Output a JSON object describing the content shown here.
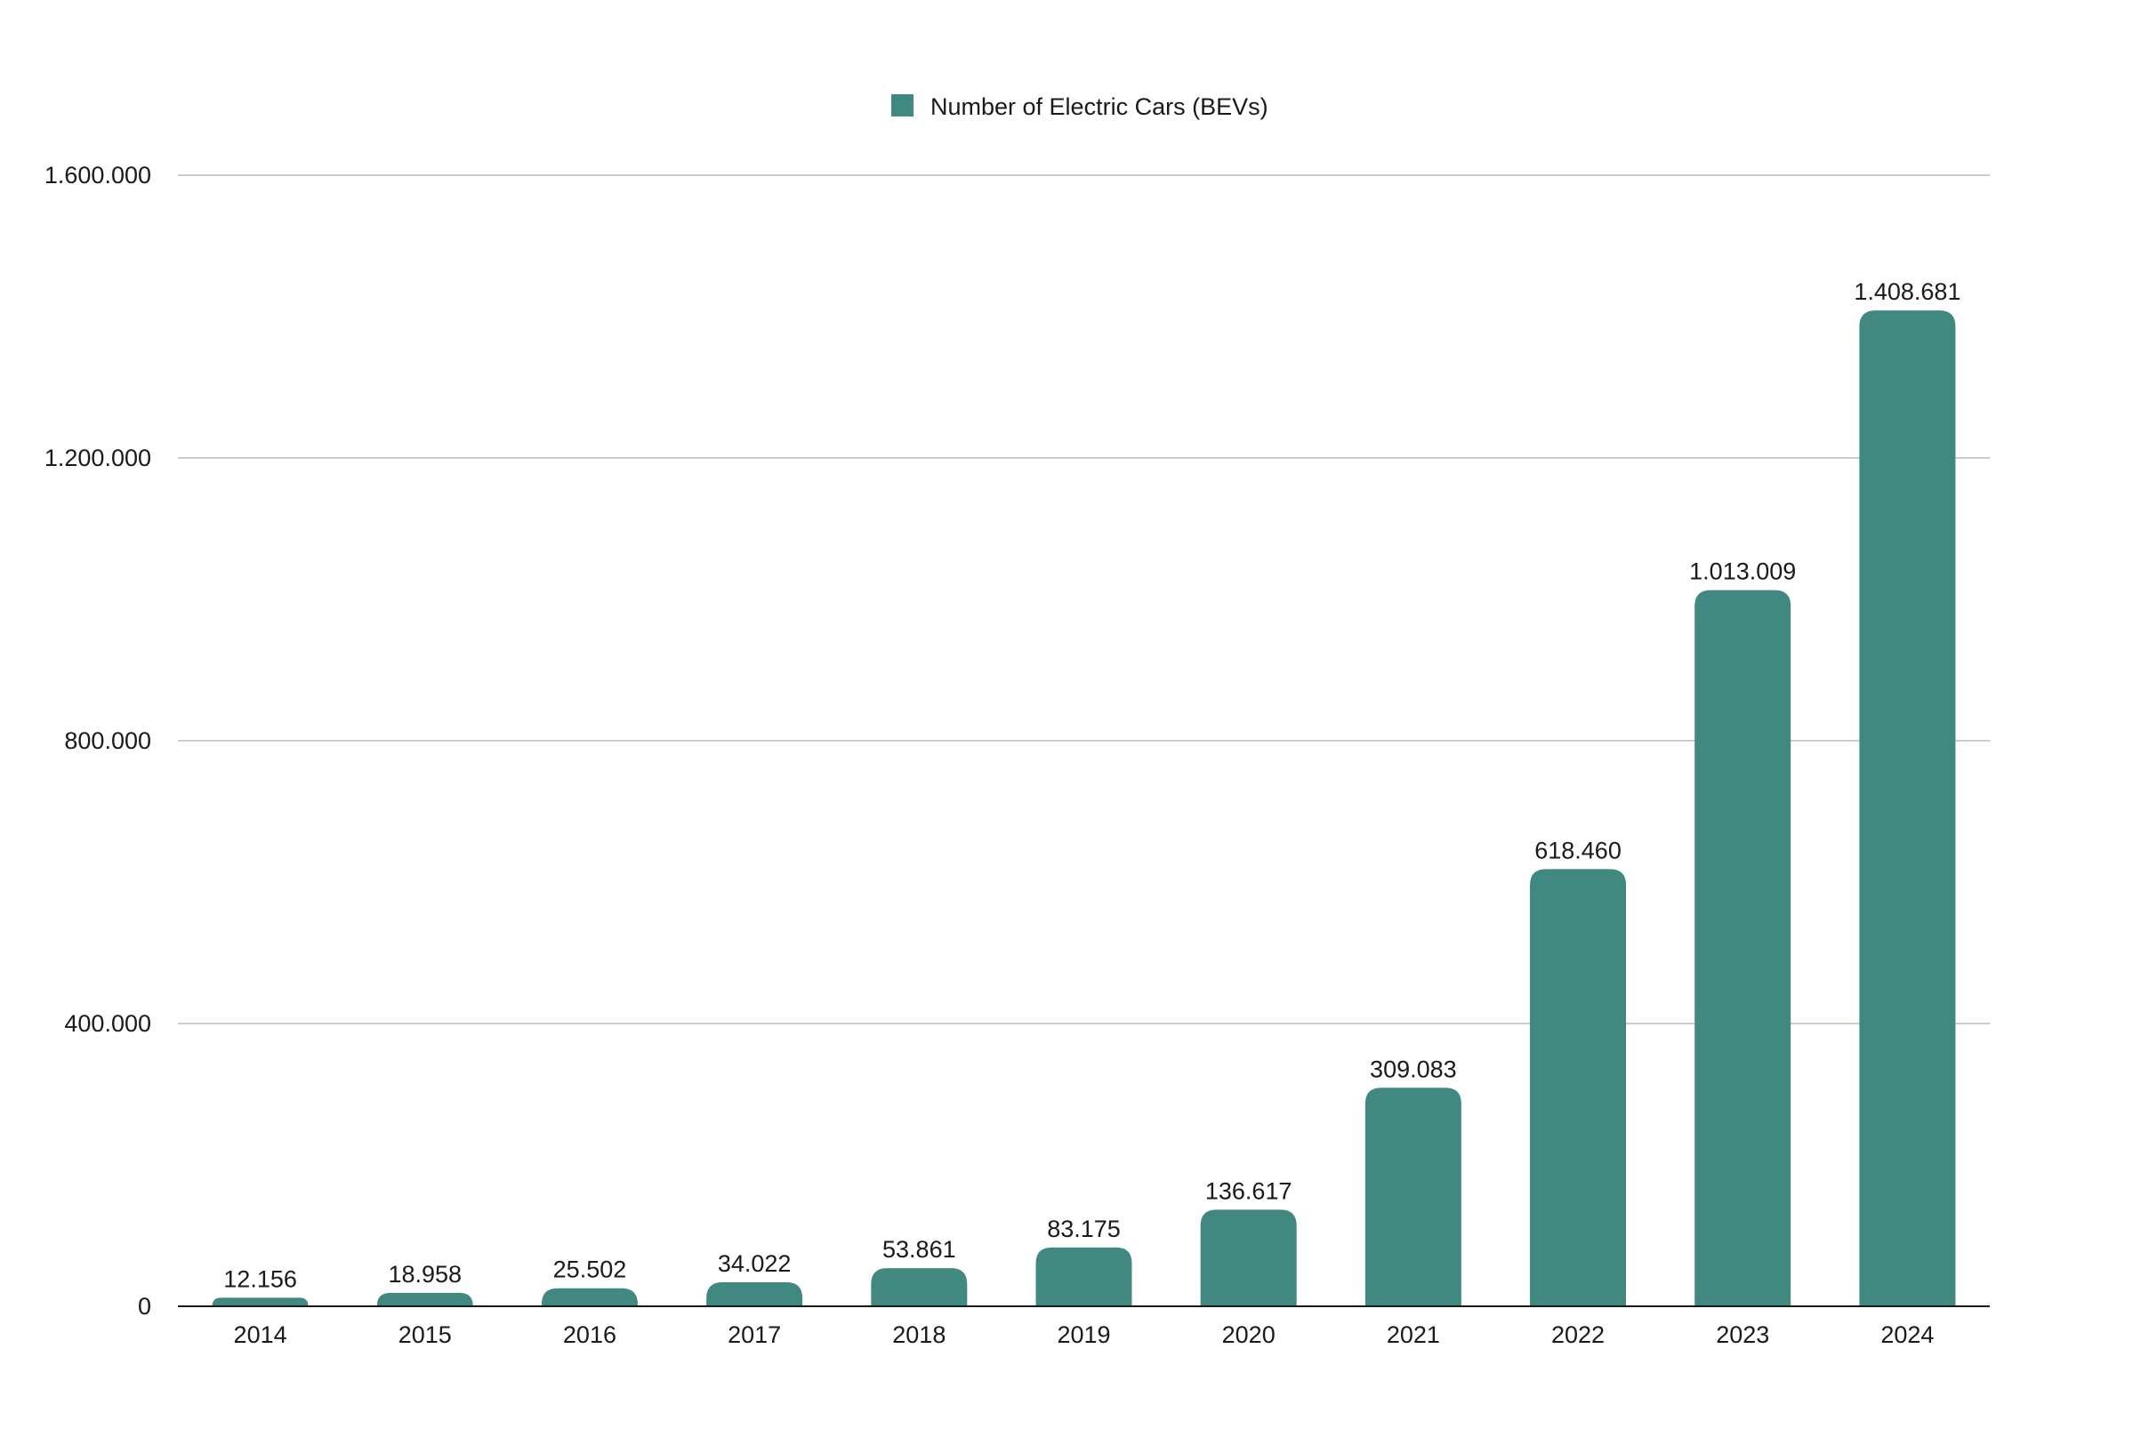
{
  "chart_data": {
    "type": "bar",
    "legend": {
      "position": "top-center"
    },
    "series": [
      {
        "name": "Number of Electric Cars (BEVs)",
        "color": "#418980",
        "values": [
          12156,
          18958,
          25502,
          34022,
          53861,
          83175,
          136617,
          309083,
          618460,
          1013009,
          1408681
        ],
        "value_labels": [
          "12.156",
          "18.958",
          "25.502",
          "34.022",
          "53.861",
          "83.175",
          "136.617",
          "309.083",
          "618.460",
          "1.013.009",
          "1.408.681"
        ]
      }
    ],
    "categories": [
      "2014",
      "2015",
      "2016",
      "2017",
      "2018",
      "2019",
      "2020",
      "2021",
      "2022",
      "2023",
      "2024"
    ],
    "ylim": [
      0,
      1600000
    ],
    "yticks": [
      {
        "value": 0,
        "label": "0"
      },
      {
        "value": 400000,
        "label": "400.000"
      },
      {
        "value": 800000,
        "label": "800.000"
      },
      {
        "value": 1200000,
        "label": "1.200.000"
      },
      {
        "value": 1600000,
        "label": "1.600.000"
      }
    ],
    "grid": true,
    "colors": {
      "bar": "#418980",
      "grid": "#cccccc",
      "axis": "#1a1a1a"
    }
  }
}
